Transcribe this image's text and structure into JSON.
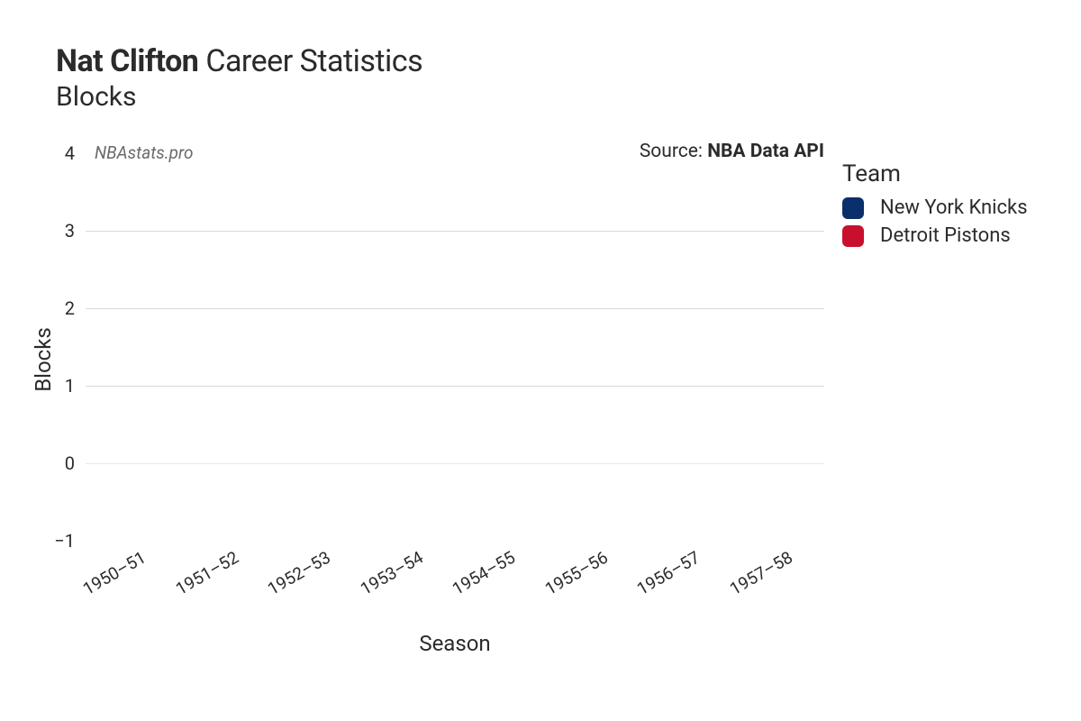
{
  "title": {
    "player": "Nat Clifton",
    "rest": "Career Statistics",
    "subtitle": "Blocks"
  },
  "watermark": "NBAstats.pro",
  "source": {
    "prefix": "Source: ",
    "name": "NBA Data API"
  },
  "chart": {
    "type": "bar",
    "ylabel": "Blocks",
    "xlabel": "Season",
    "ylim": [
      -1,
      4
    ],
    "yticks": [
      -1,
      0,
      1,
      2,
      3,
      4
    ],
    "gridline_yvalues": [
      0,
      1,
      2,
      3
    ],
    "categories": [
      "1950–51",
      "1951–52",
      "1952–53",
      "1953–54",
      "1954–55",
      "1955–56",
      "1956–57",
      "1957–58"
    ],
    "values": [
      null,
      null,
      null,
      null,
      null,
      null,
      null,
      null
    ],
    "grid_color": "#d9d9d9",
    "zero_line_color": "#e8e8e8",
    "background_color": "#ffffff",
    "tick_fontsize": 20,
    "label_fontsize": 24,
    "xtick_rotation_deg": -30
  },
  "legend": {
    "title": "Team",
    "items": [
      {
        "label": "New York Knicks",
        "color": "#0a2f6b"
      },
      {
        "label": "Detroit Pistons",
        "color": "#c8102e"
      }
    ]
  }
}
